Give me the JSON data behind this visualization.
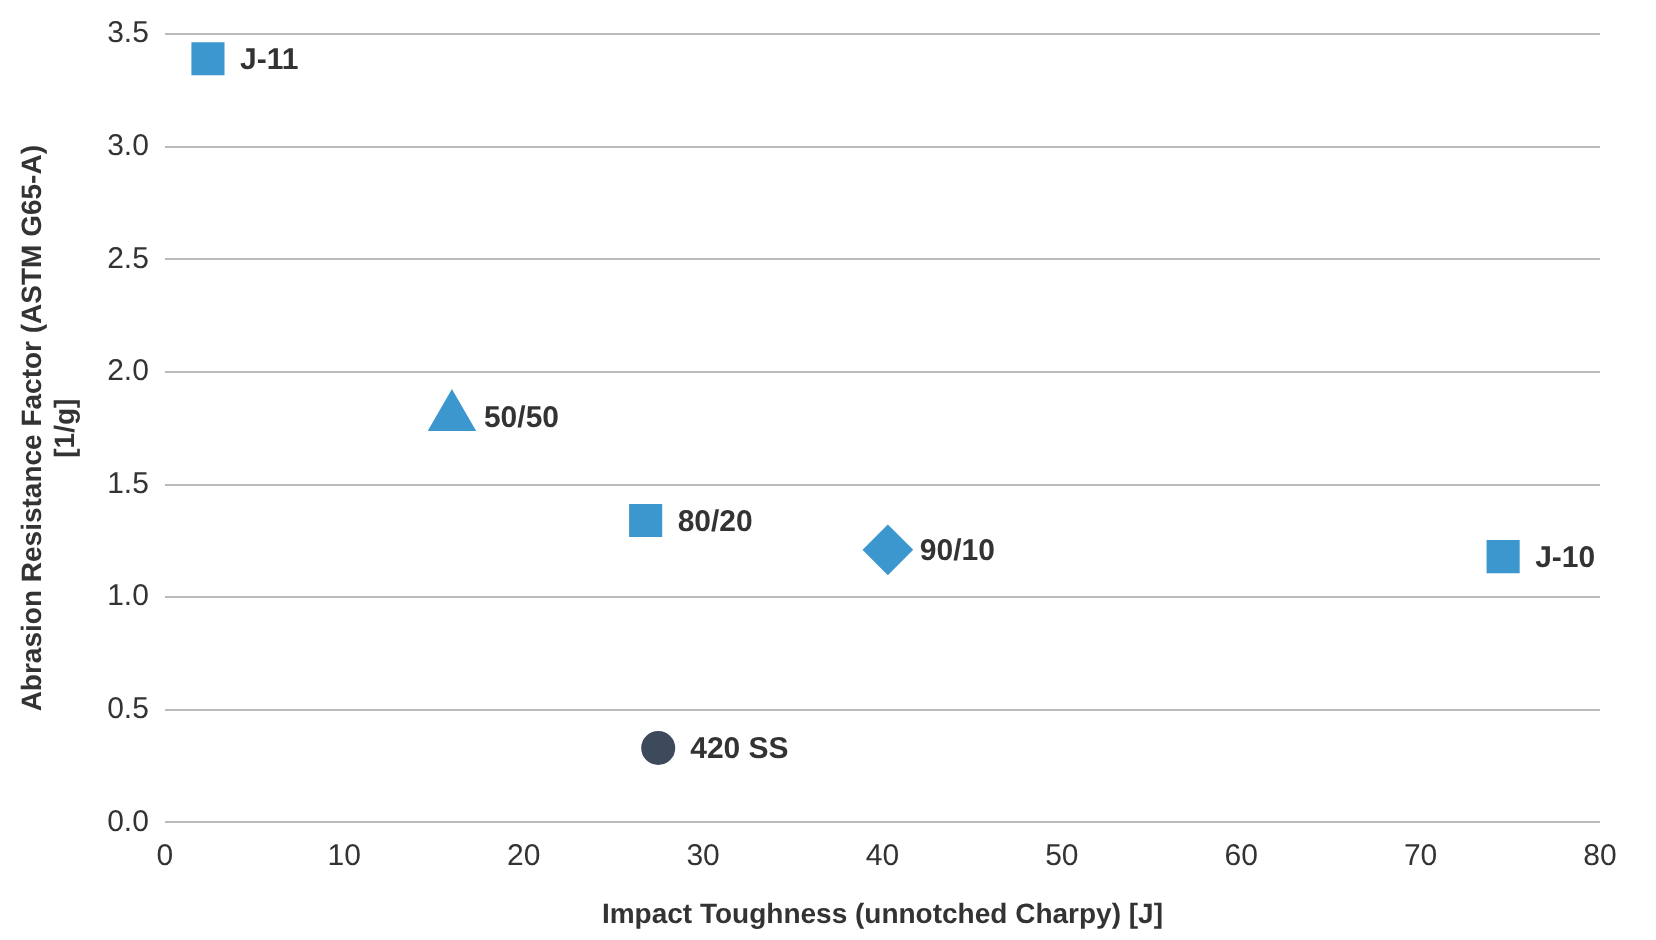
{
  "chart_data": {
    "type": "scatter",
    "xlabel": "Impact Toughness (unnotched Charpy) [J]",
    "ylabel": "Abrasion Resistance Factor (ASTM G65-A)\n[1/g]",
    "xlim": [
      0,
      80
    ],
    "xticks": [
      0,
      10,
      20,
      30,
      40,
      50,
      60,
      70,
      80
    ],
    "ylim": [
      0,
      3.5
    ],
    "yticks": [
      {
        "value": 0,
        "label": "0.0"
      },
      {
        "value": 0.5,
        "label": "0.5"
      },
      {
        "value": 1,
        "label": "1.0"
      },
      {
        "value": 1.5,
        "label": "1.5"
      },
      {
        "value": 2,
        "label": "2.0"
      },
      {
        "value": 2.5,
        "label": "2.5"
      },
      {
        "value": 3,
        "label": "3.0"
      },
      {
        "value": 3.5,
        "label": "3.5"
      }
    ],
    "grid": "y",
    "legend": false,
    "series": [
      {
        "name": "J-11",
        "color": "#3d97cf",
        "marker": "square",
        "x": [
          2.4
        ],
        "values": [
          3.39
        ]
      },
      {
        "name": "50/50",
        "color": "#3d97cf",
        "marker": "triangle",
        "x": [
          16
        ],
        "values": [
          1.8
        ]
      },
      {
        "name": "80/20",
        "color": "#3d97cf",
        "marker": "square",
        "x": [
          26.8
        ],
        "values": [
          1.34
        ]
      },
      {
        "name": "90/10",
        "color": "#3d97cf",
        "marker": "diamond",
        "x": [
          40.3
        ],
        "values": [
          1.21
        ]
      },
      {
        "name": "J-10",
        "color": "#3d97cf",
        "marker": "square",
        "x": [
          74.6
        ],
        "values": [
          1.18
        ]
      },
      {
        "name": "420 SS",
        "color": "#3d4a5c",
        "marker": "circle",
        "x": [
          27.5
        ],
        "values": [
          0.33
        ]
      }
    ]
  }
}
